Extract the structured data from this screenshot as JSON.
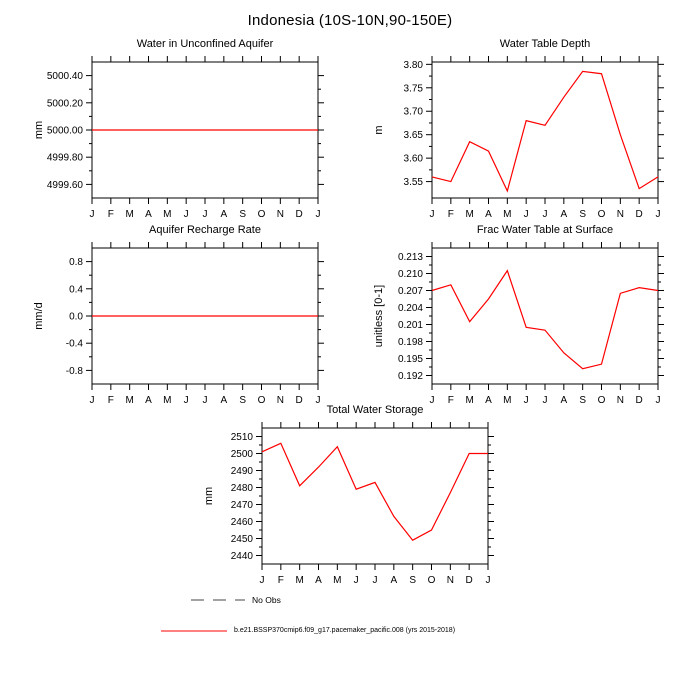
{
  "page_title": "Indonesia (10S-10N,90-150E)",
  "months": [
    "J",
    "F",
    "M",
    "A",
    "M",
    "J",
    "J",
    "A",
    "S",
    "O",
    "N",
    "D",
    "J"
  ],
  "colors": {
    "line": "#ff0000",
    "axis": "#000000",
    "no_obs": "#444444"
  },
  "legend": {
    "no_obs_label": "No Obs",
    "model_label": "b.e21.BSSP370cmip6.f09_g17.pacemaker_pacific.008 (yrs 2015-2018)"
  },
  "chart_data": [
    {
      "type": "line",
      "title": "Water in Unconfined Aquifer",
      "ylabel": "mm",
      "xlabel": "",
      "ylim": [
        4999.5,
        5000.5
      ],
      "yticks": [
        4999.6,
        4999.8,
        5000.0,
        5000.2,
        5000.4
      ],
      "ytick_labels": [
        "4999.60",
        "4999.80",
        "5000.00",
        "5000.20",
        "5000.40"
      ],
      "values": [
        5000.0,
        5000.0,
        5000.0,
        5000.0,
        5000.0,
        5000.0,
        5000.0,
        5000.0,
        5000.0,
        5000.0,
        5000.0,
        5000.0,
        5000.0
      ]
    },
    {
      "type": "line",
      "title": "Water Table Depth",
      "ylabel": "m",
      "xlabel": "",
      "ylim": [
        3.515,
        3.805
      ],
      "yticks": [
        3.55,
        3.6,
        3.65,
        3.7,
        3.75,
        3.8
      ],
      "ytick_labels": [
        "3.55",
        "3.60",
        "3.65",
        "3.70",
        "3.75",
        "3.80"
      ],
      "values": [
        3.56,
        3.55,
        3.635,
        3.615,
        3.53,
        3.68,
        3.67,
        3.73,
        3.785,
        3.78,
        3.65,
        3.535,
        3.56
      ]
    },
    {
      "type": "line",
      "title": "Aquifer Recharge Rate",
      "ylabel": "mm/d",
      "xlabel": "",
      "ylim": [
        -1.0,
        1.0
      ],
      "yticks": [
        -0.8,
        -0.4,
        0.0,
        0.4,
        0.8
      ],
      "ytick_labels": [
        "-0.8",
        "-0.4",
        "0.0",
        "0.4",
        "0.8"
      ],
      "values": [
        0,
        0,
        0,
        0,
        0,
        0,
        0,
        0,
        0,
        0,
        0,
        0,
        0
      ]
    },
    {
      "type": "line",
      "title": "Frac Water Table at Surface",
      "ylabel": "unitless [0-1]",
      "xlabel": "",
      "ylim": [
        0.1905,
        0.2145
      ],
      "yticks": [
        0.192,
        0.195,
        0.198,
        0.201,
        0.204,
        0.207,
        0.21,
        0.213
      ],
      "ytick_labels": [
        "0.192",
        "0.195",
        "0.198",
        "0.201",
        "0.204",
        "0.207",
        "0.210",
        "0.213"
      ],
      "values": [
        0.207,
        0.208,
        0.2015,
        0.2055,
        0.2105,
        0.2005,
        0.2,
        0.196,
        0.1932,
        0.194,
        0.2065,
        0.2075,
        0.207
      ]
    },
    {
      "type": "line",
      "title": "Total Water Storage",
      "ylabel": "mm",
      "xlabel": "",
      "ylim": [
        2435,
        2515
      ],
      "yticks": [
        2440,
        2450,
        2460,
        2470,
        2480,
        2490,
        2500,
        2510
      ],
      "ytick_labels": [
        "2440",
        "2450",
        "2460",
        "2470",
        "2480",
        "2490",
        "2500",
        "2510"
      ],
      "values": [
        2501,
        2506,
        2481,
        2492,
        2504,
        2479,
        2483,
        2463,
        2449,
        2455,
        2477,
        2500,
        2500
      ]
    }
  ]
}
